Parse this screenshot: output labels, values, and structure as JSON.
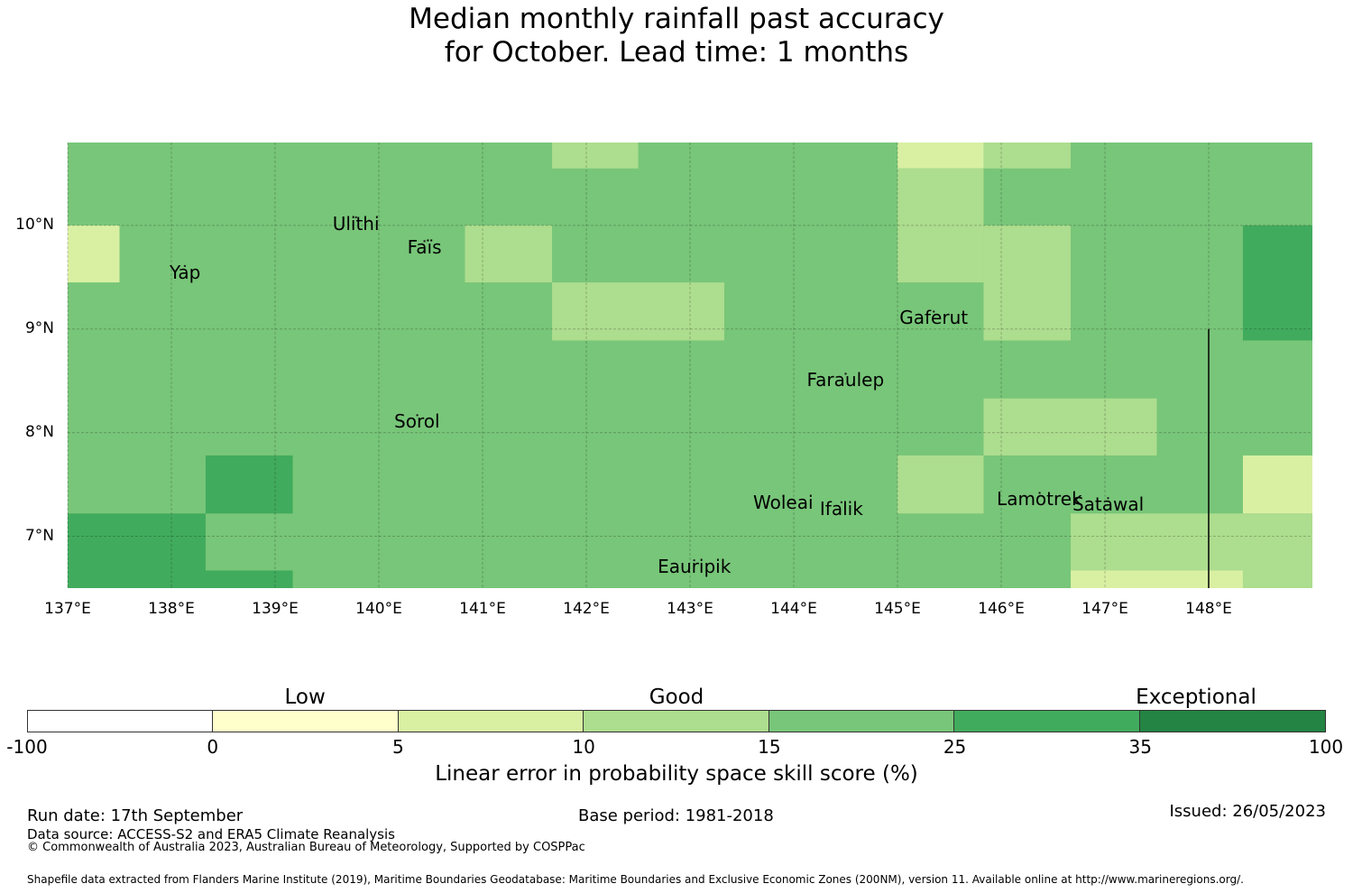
{
  "title": {
    "line1": "Median monthly rainfall past accuracy",
    "line2": "for October. Lead time: 1 months"
  },
  "map": {
    "lon_range": [
      137,
      149
    ],
    "lat_range": [
      6.5,
      10.8
    ],
    "lat_ticks": [
      {
        "value": 10,
        "label": "10°N"
      },
      {
        "value": 9,
        "label": "9°N"
      },
      {
        "value": 8,
        "label": "8°N"
      },
      {
        "value": 7,
        "label": "7°N"
      }
    ],
    "lon_ticks": [
      {
        "value": 137,
        "label": "137°E"
      },
      {
        "value": 138,
        "label": "138°E"
      },
      {
        "value": 139,
        "label": "139°E"
      },
      {
        "value": 140,
        "label": "140°E"
      },
      {
        "value": 141,
        "label": "141°E"
      },
      {
        "value": 142,
        "label": "142°E"
      },
      {
        "value": 143,
        "label": "143°E"
      },
      {
        "value": 144,
        "label": "144°E"
      },
      {
        "value": 145,
        "label": "145°E"
      },
      {
        "value": 146,
        "label": "146°E"
      },
      {
        "value": 147,
        "label": "147°E"
      },
      {
        "value": 148,
        "label": "148°E"
      }
    ],
    "grid_lines": true,
    "default_class": 4,
    "cells": [
      {
        "lon": [
          137.0,
          137.5
        ],
        "lat": [
          9.45,
          10.0
        ],
        "class": 2
      },
      {
        "lon": [
          140.83,
          141.67
        ],
        "lat": [
          9.45,
          10.0
        ],
        "class": 3
      },
      {
        "lon": [
          141.67,
          143.33
        ],
        "lat": [
          8.89,
          9.45
        ],
        "class": 3
      },
      {
        "lon": [
          141.67,
          142.5
        ],
        "lat": [
          10.55,
          10.8
        ],
        "class": 3
      },
      {
        "lon": [
          145.0,
          145.83
        ],
        "lat": [
          10.55,
          10.8
        ],
        "class": 2
      },
      {
        "lon": [
          145.83,
          146.67
        ],
        "lat": [
          10.55,
          10.8
        ],
        "class": 3
      },
      {
        "lon": [
          145.0,
          145.83
        ],
        "lat": [
          9.45,
          10.55
        ],
        "class": 3
      },
      {
        "lon": [
          145.83,
          146.67
        ],
        "lat": [
          8.89,
          10.0
        ],
        "class": 3
      },
      {
        "lon": [
          148.33,
          149.0
        ],
        "lat": [
          8.89,
          10.0
        ],
        "class": 5
      },
      {
        "lon": [
          145.83,
          147.5
        ],
        "lat": [
          7.78,
          8.33
        ],
        "class": 3
      },
      {
        "lon": [
          145.0,
          145.83
        ],
        "lat": [
          7.22,
          7.78
        ],
        "class": 3
      },
      {
        "lon": [
          148.33,
          149.0
        ],
        "lat": [
          7.22,
          7.78
        ],
        "class": 2
      },
      {
        "lon": [
          146.67,
          149.0
        ],
        "lat": [
          6.67,
          7.22
        ],
        "class": 3
      },
      {
        "lon": [
          146.67,
          148.33
        ],
        "lat": [
          6.5,
          6.67
        ],
        "class": 2
      },
      {
        "lon": [
          148.33,
          149.0
        ],
        "lat": [
          6.5,
          6.67
        ],
        "class": 3
      },
      {
        "lon": [
          138.33,
          139.17
        ],
        "lat": [
          7.22,
          7.78
        ],
        "class": 5
      },
      {
        "lon": [
          137.0,
          138.33
        ],
        "lat": [
          6.5,
          7.22
        ],
        "class": 5
      },
      {
        "lon": [
          138.33,
          139.17
        ],
        "lat": [
          6.5,
          6.67
        ],
        "class": 5
      }
    ],
    "boundary_line": {
      "lon": 148.0,
      "lat": [
        6.5,
        9.0
      ]
    },
    "places": [
      {
        "name": "Ulithi",
        "lon": 139.78,
        "lat": 10.0
      },
      {
        "name": "Yap",
        "lon": 138.13,
        "lat": 9.53
      },
      {
        "name": "Faïs",
        "lon": 140.44,
        "lat": 9.77
      },
      {
        "name": "Gaferut",
        "lon": 145.35,
        "lat": 9.09
      },
      {
        "name": "Faraulep",
        "lon": 144.5,
        "lat": 8.49
      },
      {
        "name": "Sorol",
        "lon": 140.37,
        "lat": 8.09
      },
      {
        "name": "Woleai",
        "lon": 143.9,
        "lat": 7.31
      },
      {
        "name": "Ifalik",
        "lon": 144.46,
        "lat": 7.25
      },
      {
        "name": "Lamotrek",
        "lon": 146.37,
        "lat": 7.34
      },
      {
        "name": "Satawal",
        "lon": 147.03,
        "lat": 7.29
      },
      {
        "name": "Eauripik",
        "lon": 143.04,
        "lat": 6.69
      }
    ]
  },
  "colorbar": {
    "classes": [
      {
        "from": "-100",
        "to": "0",
        "color": "#ffffff"
      },
      {
        "from": "0",
        "to": "5",
        "color": "#ffffcc"
      },
      {
        "from": "5",
        "to": "10",
        "color": "#d9f0a3"
      },
      {
        "from": "10",
        "to": "15",
        "color": "#addd8e"
      },
      {
        "from": "15",
        "to": "25",
        "color": "#78c679"
      },
      {
        "from": "25",
        "to": "35",
        "color": "#41ab5d"
      },
      {
        "from": "35",
        "to": "100",
        "color": "#238443"
      }
    ],
    "tick_labels": [
      "-100",
      "0",
      "5",
      "10",
      "15",
      "25",
      "35",
      "100"
    ],
    "category_labels": [
      {
        "text": "Low",
        "position": 0.214
      },
      {
        "text": "Good",
        "position": 0.5
      },
      {
        "text": "Exceptional",
        "position": 0.9
      }
    ],
    "label": "Linear error in probability space skill score (%)"
  },
  "footer": {
    "run_date": "Run date: 17th September",
    "data_source": "Data source: ACCESS-S2 and ERA5 Climate Reanalysis",
    "copyright": "© Commonwealth of Australia 2023, Australian Bureau of Meteorology, Supported by COSPPac",
    "base_period": "Base period: 1981-2018",
    "issued": "Issued: 26/05/2023",
    "shapefile": "Shapefile data extracted from Flanders Marine Institute (2019), Maritime Boundaries Geodatabase: Maritime Boundaries and Exclusive Economic Zones (200NM), version 11. Available online at http://www.marineregions.org/."
  }
}
